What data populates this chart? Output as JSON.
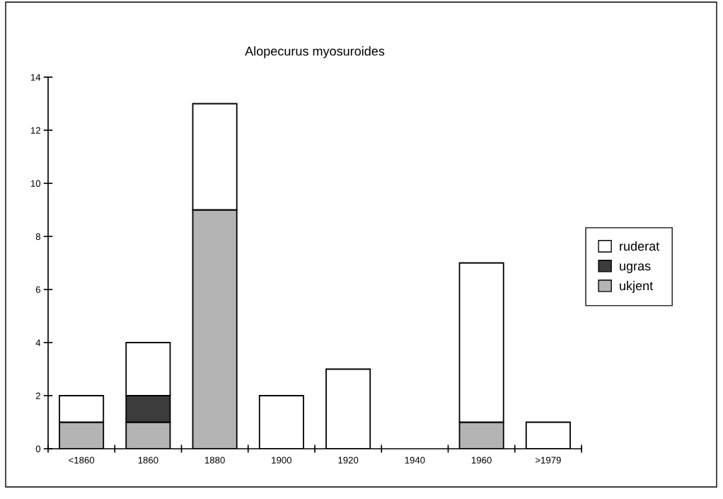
{
  "chart_data": {
    "type": "bar",
    "title": "Alopecurus myosuroides",
    "categories": [
      "<1860",
      "1860",
      "1880",
      "1900",
      "1920",
      "1940",
      "1960",
      ">1979"
    ],
    "series": [
      {
        "name": "ukjent",
        "color": "#b4b4b4",
        "values": [
          1,
          1,
          9,
          null,
          null,
          null,
          1,
          null
        ]
      },
      {
        "name": "ugras",
        "color": "#3c3c3c",
        "values": [
          null,
          1,
          null,
          null,
          null,
          null,
          null,
          null
        ]
      },
      {
        "name": "ruderat",
        "color": "#ffffff",
        "values": [
          1,
          2,
          4,
          2,
          3,
          null,
          6,
          1
        ]
      }
    ],
    "stacked": true,
    "ylim": [
      0,
      14
    ],
    "yticks": [
      0,
      2,
      4,
      6,
      8,
      10,
      12,
      14
    ],
    "grid": false,
    "legend": "right"
  }
}
